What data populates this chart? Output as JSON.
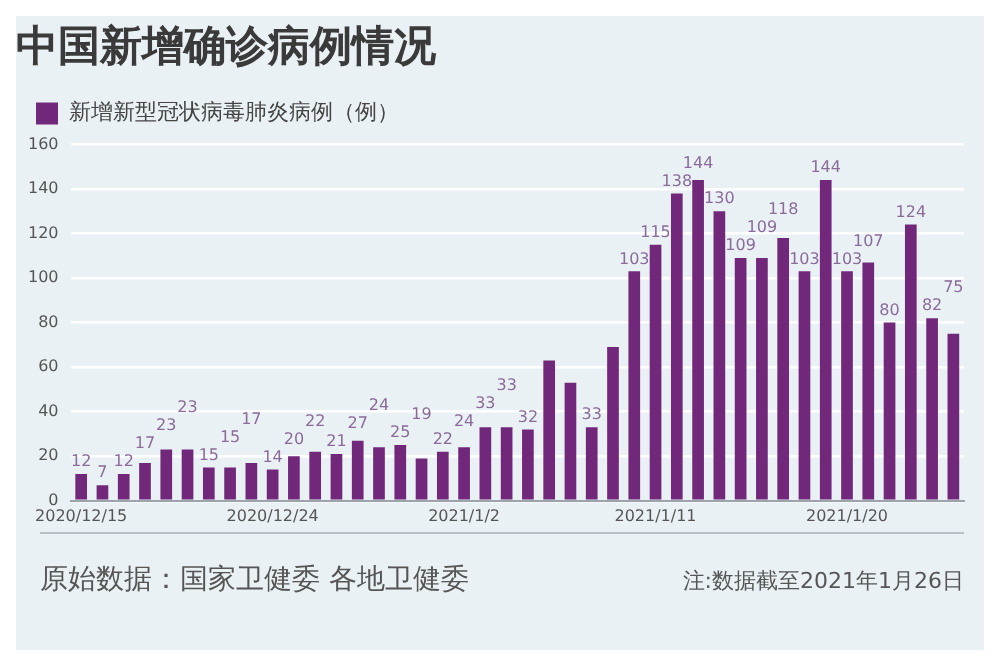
{
  "chart_data": {
    "type": "bar",
    "title": "中国新增确诊病例情况",
    "categories": [
      "2020/12/15",
      null,
      null,
      null,
      null,
      null,
      null,
      null,
      null,
      "2020/12/24",
      null,
      null,
      null,
      null,
      null,
      null,
      null,
      null,
      "2021/1/2",
      null,
      null,
      null,
      null,
      null,
      null,
      null,
      null,
      "2021/1/11",
      null,
      null,
      null,
      null,
      null,
      null,
      null,
      null,
      "2021/1/20",
      null,
      null,
      null,
      null,
      null
    ],
    "series": [
      {
        "name": "新增新型冠状病毒肺炎病例（例）",
        "color": "#72287a",
        "values": [
          12,
          7,
          12,
          17,
          23,
          23,
          15,
          15,
          17,
          14,
          20,
          22,
          21,
          27,
          24,
          25,
          19,
          22,
          24,
          33,
          33,
          32,
          63,
          53,
          33,
          69,
          103,
          115,
          138,
          144,
          130,
          109,
          109,
          118,
          103,
          144,
          103,
          107,
          80,
          124,
          82,
          75
        ],
        "value_labels": [
          "12",
          "7",
          "12",
          "17",
          "23",
          "23",
          "15",
          "15",
          "17",
          "14",
          "20",
          "22",
          "21",
          "27",
          "24",
          "25",
          "19",
          "22",
          "24",
          "33",
          "33",
          "32",
          null,
          null,
          "33",
          null,
          "103",
          "115",
          "138",
          "144",
          "130",
          "109",
          "109",
          "118",
          "103",
          "144",
          "103",
          "107",
          "80",
          "124",
          "82",
          "75"
        ]
      }
    ],
    "ylim": [
      0,
      160
    ],
    "yticks": [
      0,
      20,
      40,
      60,
      80,
      100,
      120,
      140,
      160
    ],
    "grid": "y",
    "legend": "top left",
    "annotations": [
      "原始数据：国家卫健委 各地卫健委",
      "注:数据截至2021年1月26日"
    ]
  }
}
